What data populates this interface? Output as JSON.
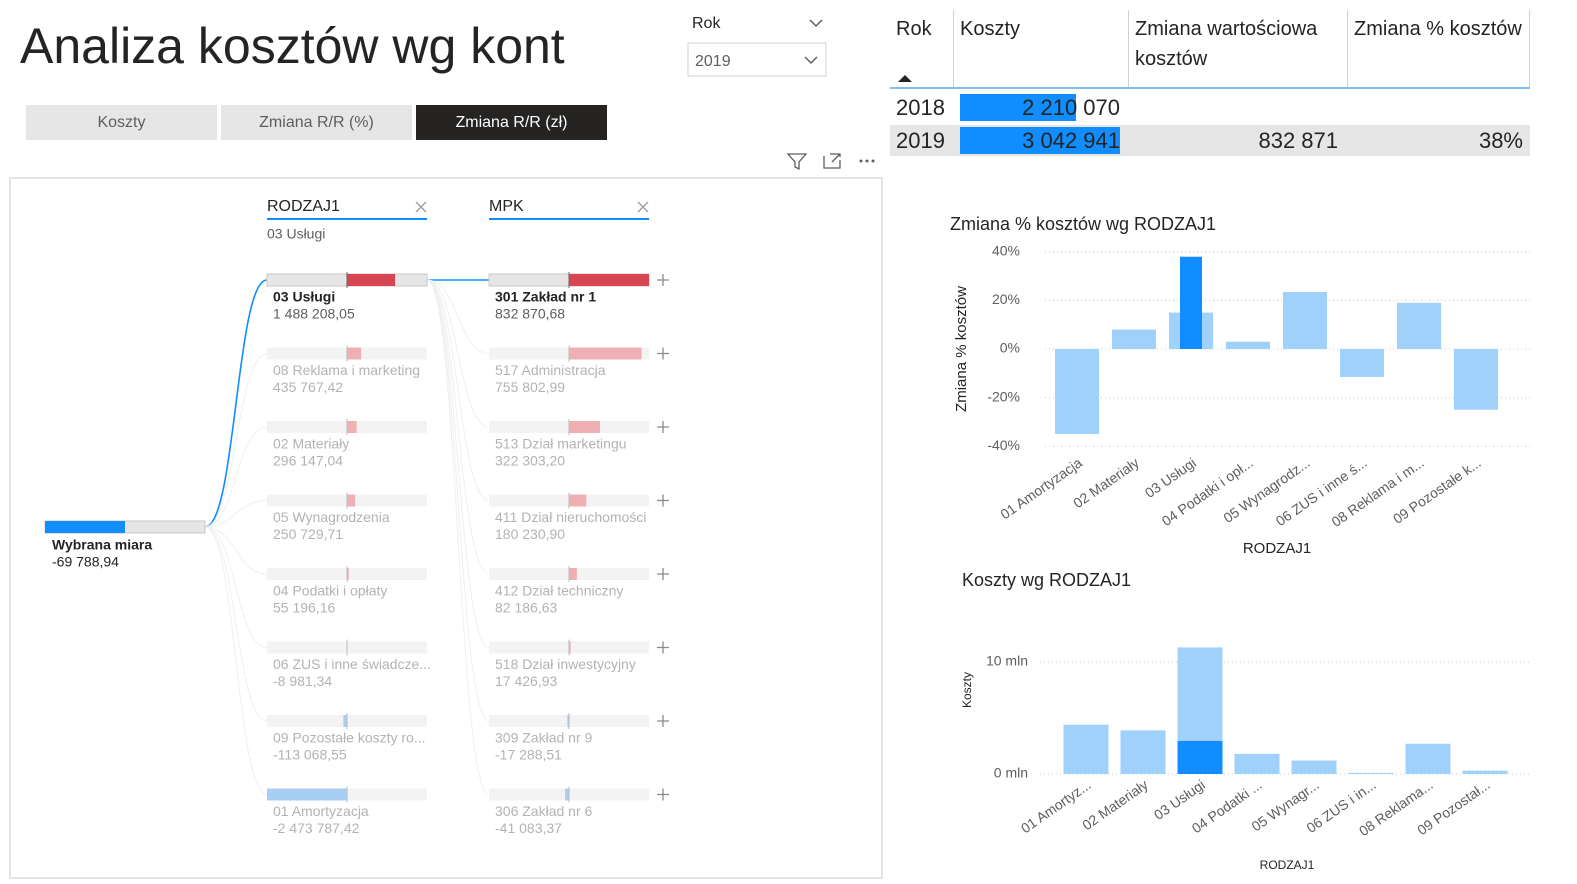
{
  "header": {
    "title": "Analiza kosztów wg kont"
  },
  "slicer": {
    "label": "Rok",
    "value": "2019"
  },
  "tabs": {
    "items": [
      "Koszty",
      "Zmiana R/R (%)",
      "Zmiana R/R (zł)"
    ],
    "active": 2
  },
  "tree": {
    "root": {
      "label": "Wybrana miara",
      "value": -69788.94,
      "value_label": "-69 788,94"
    },
    "levels": [
      {
        "field": "RODZAJ1",
        "filter": "03 Usługi",
        "selected": 0,
        "nodes": [
          {
            "label": "03 Usługi",
            "value": 1488208.05,
            "value_label": "1 488 208,05"
          },
          {
            "label": "08 Reklama i marketing",
            "value": 435767.42,
            "value_label": "435 767,42"
          },
          {
            "label": "02 Materiały",
            "value": 296147.04,
            "value_label": "296 147,04"
          },
          {
            "label": "05 Wynagrodzenia",
            "value": 250729.71,
            "value_label": "250 729,71"
          },
          {
            "label": "04 Podatki i opłaty",
            "value": 55196.16,
            "value_label": "55 196,16"
          },
          {
            "label": "06 ZUS i inne świadcze...",
            "value": -8981.34,
            "value_label": "-8 981,34"
          },
          {
            "label": "09 Pozostałe koszty ro...",
            "value": -113068.55,
            "value_label": "-113 068,55"
          },
          {
            "label": "01 Amortyzacja",
            "value": -2473787.42,
            "value_label": "-2 473 787,42"
          }
        ]
      },
      {
        "field": "MPK",
        "selected": 0,
        "nodes": [
          {
            "label": "301 Zakład nr 1",
            "value": 832870.68,
            "value_label": "832 870,68"
          },
          {
            "label": "517 Administracja",
            "value": 755802.99,
            "value_label": "755 802,99"
          },
          {
            "label": "513 Dział marketingu",
            "value": 322303.2,
            "value_label": "322 303,20"
          },
          {
            "label": "411 Dział nieruchomości",
            "value": 180230.9,
            "value_label": "180 230,90"
          },
          {
            "label": "412 Dział techniczny",
            "value": 82186.63,
            "value_label": "82 186,63"
          },
          {
            "label": "518 Dział inwestycyjny",
            "value": 17426.93,
            "value_label": "17 426,93"
          },
          {
            "label": "309 Zakład nr 9",
            "value": -17288.51,
            "value_label": "-17 288,51"
          },
          {
            "label": "306 Zakład nr 6",
            "value": -41083.37,
            "value_label": "-41 083,37"
          }
        ]
      }
    ]
  },
  "table": {
    "columns": [
      "Rok",
      "Koszty",
      "Zmiana wartościowa kosztów",
      "Zmiana % kosztów"
    ],
    "sort_column": 0,
    "rows": [
      {
        "rok": "2018",
        "koszty": 2210070,
        "koszty_label": "2 210 070"
      },
      {
        "rok": "2019",
        "koszty": 3042941,
        "koszty_label": "3 042 941",
        "zmiana": "832 871",
        "zmiana_pct": "38%"
      }
    ]
  },
  "chart_data": [
    {
      "type": "bar",
      "title": "Zmiana % kosztów wg RODZAJ1",
      "x_label": "RODZAJ1",
      "y_label": "Zmiana % kosztów",
      "categories": [
        "01 Amortyzacja",
        "02 Materiały",
        "03 Usługi",
        "04 Podatki i opł...",
        "05 Wynagrodz...",
        "06 ZUS i inne ś...",
        "08 Reklama i m...",
        "09 Pozostałe k..."
      ],
      "values": [
        -35,
        8,
        15,
        3,
        23.5,
        -11.5,
        19,
        -25
      ],
      "highlight_values": [
        null,
        null,
        38,
        null,
        null,
        null,
        null,
        null
      ],
      "color": "#a0d1fa",
      "highlight_color": "#118dff",
      "ylim": [
        -42,
        42
      ],
      "yticks": [
        {
          "value": -40,
          "label": "-40%"
        },
        {
          "value": -20,
          "label": "-20%"
        },
        {
          "value": 0,
          "label": "0%"
        },
        {
          "value": 20,
          "label": "20%"
        },
        {
          "value": 40,
          "label": "40%"
        }
      ],
      "grid": true
    },
    {
      "type": "bar",
      "title": "Koszty wg RODZAJ1",
      "x_label": "RODZAJ1",
      "y_label": "Koszty",
      "categories": [
        "01 Amortyz...",
        "02 Materiały",
        "03 Usługi",
        "04 Podatki ...",
        "05 Wynagr...",
        "06 ZUS i in...",
        "08 Reklama...",
        "09 Pozostał..."
      ],
      "values": [
        4400000,
        3900000,
        11300000,
        1800000,
        1200000,
        100000,
        2700000,
        300000
      ],
      "highlight_values": [
        null,
        null,
        2950000,
        null,
        null,
        null,
        null,
        null
      ],
      "color": "#a0d1fa",
      "highlight_color": "#118dff",
      "ylim": [
        0,
        12000000
      ],
      "yticks": [
        {
          "value": 0,
          "label": "0 mln"
        },
        {
          "value": 10000000,
          "label": "10 mln"
        }
      ],
      "grid": true
    }
  ]
}
